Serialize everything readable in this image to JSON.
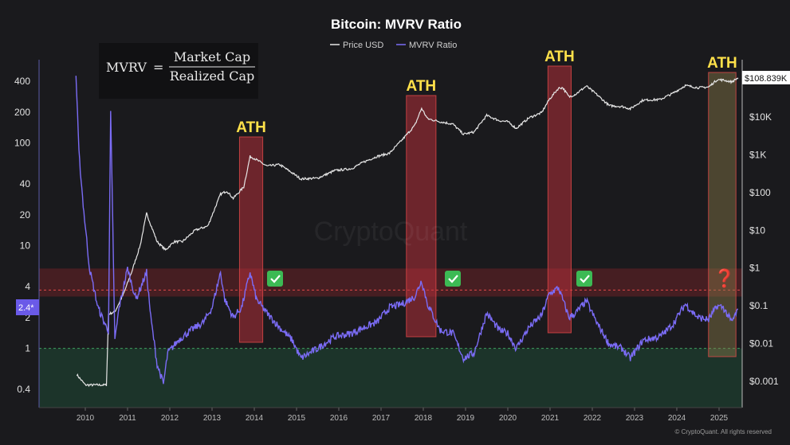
{
  "chart_data": {
    "type": "line",
    "title": "Bitcoin: MVRV Ratio",
    "legend": [
      {
        "name": "Price USD",
        "color": "#e6e6e6"
      },
      {
        "name": "MVRV Ratio",
        "color": "#7b6cf6"
      }
    ],
    "legend_position": "top-center",
    "x_ticks": [
      "2010",
      "2011",
      "2012",
      "2013",
      "2014",
      "2015",
      "2016",
      "2017",
      "2018",
      "2019",
      "2020",
      "2021",
      "2022",
      "2023",
      "2024",
      "2025"
    ],
    "left_axis": {
      "scale": "log",
      "ticks": [
        "400",
        "200",
        "100",
        "40",
        "20",
        "10",
        "4",
        "2",
        "1",
        "0.4"
      ]
    },
    "right_axis": {
      "scale": "log",
      "ticks": [
        "$10K",
        "$1K",
        "$100",
        "$10",
        "$1",
        "$0.1",
        "$0.01",
        "$0.001"
      ]
    },
    "current_price_label": "$108.839K",
    "current_mvrv_label": "2.4*",
    "formula": {
      "lhs": "MVRV",
      "eq": "=",
      "numerator": "Market Cap",
      "denominator": "Realized Cap"
    },
    "ath_labels": [
      "ATH",
      "ATH",
      "ATH",
      "ATH"
    ],
    "ath_ranges": [
      [
        2013.65,
        2014.2
      ],
      [
        2017.6,
        2018.3
      ],
      [
        2020.95,
        2021.5
      ],
      [
        2024.75,
        2025.4
      ]
    ],
    "check_marks": [
      "✅",
      "✅",
      "✅"
    ],
    "question_mark": "❓",
    "bands": {
      "overvalued": {
        "from": 3.2,
        "to": 6.0,
        "color": "#ff4d4d",
        "threshold": 3.7
      },
      "undervalued": {
        "from": 0.3,
        "to": 1.0,
        "color": "#2e7d4f",
        "threshold": 1.0
      }
    },
    "series": [
      {
        "name": "Price USD",
        "axis": "right",
        "points": [
          [
            2009.8,
            0.0015
          ],
          [
            2010.0,
            0.0008
          ],
          [
            2010.5,
            0.0008
          ],
          [
            2010.55,
            0.06
          ],
          [
            2010.7,
            0.07
          ],
          [
            2010.9,
            0.2
          ],
          [
            2011.1,
            0.8
          ],
          [
            2011.3,
            4
          ],
          [
            2011.45,
            28
          ],
          [
            2011.55,
            14
          ],
          [
            2011.7,
            5
          ],
          [
            2011.9,
            3
          ],
          [
            2012.1,
            5
          ],
          [
            2012.3,
            5
          ],
          [
            2012.6,
            10
          ],
          [
            2012.9,
            13
          ],
          [
            2013.2,
            90
          ],
          [
            2013.35,
            110
          ],
          [
            2013.5,
            70
          ],
          [
            2013.75,
            140
          ],
          [
            2013.9,
            900
          ],
          [
            2014.0,
            800
          ],
          [
            2014.3,
            500
          ],
          [
            2014.6,
            550
          ],
          [
            2014.9,
            330
          ],
          [
            2015.1,
            230
          ],
          [
            2015.5,
            240
          ],
          [
            2015.9,
            380
          ],
          [
            2016.3,
            430
          ],
          [
            2016.6,
            650
          ],
          [
            2016.9,
            900
          ],
          [
            2017.2,
            1100
          ],
          [
            2017.5,
            2500
          ],
          [
            2017.8,
            6000
          ],
          [
            2017.96,
            17000
          ],
          [
            2018.1,
            9000
          ],
          [
            2018.4,
            7500
          ],
          [
            2018.7,
            6500
          ],
          [
            2018.95,
            3500
          ],
          [
            2019.2,
            4000
          ],
          [
            2019.5,
            11000
          ],
          [
            2019.8,
            8000
          ],
          [
            2020.0,
            7500
          ],
          [
            2020.2,
            5000
          ],
          [
            2020.5,
            9500
          ],
          [
            2020.8,
            13000
          ],
          [
            2020.98,
            29000
          ],
          [
            2021.2,
            58000
          ],
          [
            2021.3,
            60000
          ],
          [
            2021.45,
            34000
          ],
          [
            2021.6,
            40000
          ],
          [
            2021.86,
            66000
          ],
          [
            2022.1,
            40000
          ],
          [
            2022.4,
            20000
          ],
          [
            2022.7,
            19000
          ],
          [
            2022.9,
            16500
          ],
          [
            2023.2,
            28000
          ],
          [
            2023.6,
            29000
          ],
          [
            2023.9,
            42000
          ],
          [
            2024.2,
            68000
          ],
          [
            2024.5,
            60000
          ],
          [
            2024.75,
            62000
          ],
          [
            2024.96,
            98000
          ],
          [
            2025.1,
            95000
          ],
          [
            2025.3,
            85000
          ],
          [
            2025.45,
            108839
          ]
        ]
      },
      {
        "name": "MVRV Ratio",
        "axis": "left",
        "points": [
          [
            2009.78,
            450
          ],
          [
            2009.85,
            80
          ],
          [
            2009.95,
            25
          ],
          [
            2010.1,
            6
          ],
          [
            2010.3,
            2.5
          ],
          [
            2010.5,
            1.6
          ],
          [
            2010.55,
            1.5
          ],
          [
            2010.6,
            200
          ],
          [
            2010.7,
            1.2
          ],
          [
            2010.8,
            2.5
          ],
          [
            2011.0,
            6
          ],
          [
            2011.2,
            3
          ],
          [
            2011.45,
            5.5
          ],
          [
            2011.55,
            2
          ],
          [
            2011.7,
            0.7
          ],
          [
            2011.85,
            0.45
          ],
          [
            2011.95,
            0.9
          ],
          [
            2012.2,
            1.2
          ],
          [
            2012.5,
            1.5
          ],
          [
            2012.8,
            1.8
          ],
          [
            2013.0,
            2.5
          ],
          [
            2013.2,
            5.5
          ],
          [
            2013.3,
            3
          ],
          [
            2013.5,
            2.0
          ],
          [
            2013.7,
            2.5
          ],
          [
            2013.9,
            5.5
          ],
          [
            2014.05,
            3
          ],
          [
            2014.3,
            2.2
          ],
          [
            2014.6,
            1.6
          ],
          [
            2014.9,
            1.2
          ],
          [
            2015.1,
            0.8
          ],
          [
            2015.5,
            1.0
          ],
          [
            2015.9,
            1.3
          ],
          [
            2016.3,
            1.4
          ],
          [
            2016.6,
            1.6
          ],
          [
            2016.9,
            1.8
          ],
          [
            2017.2,
            2.5
          ],
          [
            2017.5,
            2.7
          ],
          [
            2017.8,
            3.2
          ],
          [
            2017.96,
            4.6
          ],
          [
            2018.1,
            2.7
          ],
          [
            2018.4,
            1.5
          ],
          [
            2018.7,
            1.4
          ],
          [
            2018.95,
            0.8
          ],
          [
            2019.2,
            0.9
          ],
          [
            2019.5,
            2.2
          ],
          [
            2019.8,
            1.5
          ],
          [
            2020.0,
            1.4
          ],
          [
            2020.2,
            1.0
          ],
          [
            2020.5,
            1.6
          ],
          [
            2020.8,
            2.1
          ],
          [
            2020.98,
            3.4
          ],
          [
            2021.2,
            3.9
          ],
          [
            2021.45,
            2.0
          ],
          [
            2021.6,
            2.2
          ],
          [
            2021.86,
            2.9
          ],
          [
            2022.1,
            1.8
          ],
          [
            2022.4,
            1.1
          ],
          [
            2022.7,
            1.0
          ],
          [
            2022.9,
            0.8
          ],
          [
            2023.2,
            1.2
          ],
          [
            2023.6,
            1.3
          ],
          [
            2023.9,
            1.7
          ],
          [
            2024.2,
            2.7
          ],
          [
            2024.5,
            2.0
          ],
          [
            2024.75,
            1.9
          ],
          [
            2024.96,
            2.6
          ],
          [
            2025.1,
            2.5
          ],
          [
            2025.3,
            1.8
          ],
          [
            2025.45,
            2.4
          ]
        ]
      }
    ],
    "copyright": "© CryptoQuant. All rights reserved",
    "watermark": "CryptoQuant",
    "grid": false
  }
}
